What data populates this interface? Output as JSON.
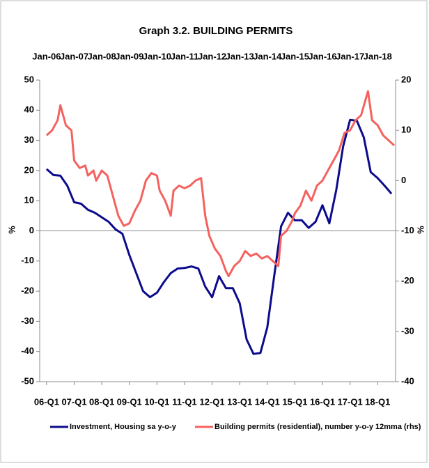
{
  "chart_data": {
    "type": "line",
    "title": "Graph 3.2. BUILDING PERMITS",
    "y_label": "%",
    "y2_label": "%",
    "xlim": [
      2005.75,
      2018.65
    ],
    "xticks": [
      {
        "value": 2006,
        "label": "06-Q1"
      },
      {
        "value": 2007,
        "label": "07-Q1"
      },
      {
        "value": 2008,
        "label": "08-Q1"
      },
      {
        "value": 2009,
        "label": "09-Q1"
      },
      {
        "value": 2010,
        "label": "10-Q1"
      },
      {
        "value": 2011,
        "label": "11-Q1"
      },
      {
        "value": 2012,
        "label": "12-Q1"
      },
      {
        "value": 2013,
        "label": "13-Q1"
      },
      {
        "value": 2014,
        "label": "14-Q1"
      },
      {
        "value": 2015,
        "label": "15-Q1"
      },
      {
        "value": 2016,
        "label": "16-Q1"
      },
      {
        "value": 2017,
        "label": "17-Q1"
      },
      {
        "value": 2018,
        "label": "18-Q1"
      }
    ],
    "x2ticks": [
      {
        "value": 2006,
        "label": "Jan-06"
      },
      {
        "value": 2007,
        "label": "Jan-07"
      },
      {
        "value": 2008,
        "label": "Jan-08"
      },
      {
        "value": 2009,
        "label": "Jan-09"
      },
      {
        "value": 2010,
        "label": "Jan-10"
      },
      {
        "value": 2011,
        "label": "Jan-11"
      },
      {
        "value": 2012,
        "label": "Jan-12"
      },
      {
        "value": 2013,
        "label": "Jan-13"
      },
      {
        "value": 2014,
        "label": "Jan-14"
      },
      {
        "value": 2015,
        "label": "Jan-15"
      },
      {
        "value": 2016,
        "label": "Jan-16"
      },
      {
        "value": 2017,
        "label": "Jan-17"
      },
      {
        "value": 2018,
        "label": "Jan-18"
      }
    ],
    "ylim": [
      -50,
      50
    ],
    "yticks": [
      50,
      40,
      30,
      20,
      10,
      0,
      -10,
      -20,
      -30,
      -40,
      -50
    ],
    "y2lim": [
      -40,
      20
    ],
    "y2ticks": [
      20,
      10,
      0,
      -10,
      -20,
      -30,
      -40
    ],
    "series": [
      {
        "name": "Investment, Housing sa y-o-y",
        "color": "#0b0b8c",
        "axis": "y",
        "x": [
          2006,
          2006.25,
          2006.5,
          2006.75,
          2007,
          2007.25,
          2007.5,
          2007.75,
          2008,
          2008.25,
          2008.5,
          2008.75,
          2009,
          2009.25,
          2009.5,
          2009.75,
          2010,
          2010.25,
          2010.5,
          2010.75,
          2011,
          2011.25,
          2011.5,
          2011.75,
          2012,
          2012.25,
          2012.5,
          2012.75,
          2013,
          2013.25,
          2013.5,
          2013.75,
          2014,
          2014.25,
          2014.5,
          2014.75,
          2015,
          2015.25,
          2015.5,
          2015.75,
          2016,
          2016.25,
          2016.5,
          2016.75,
          2017,
          2017.25,
          2017.5,
          2017.75,
          2018,
          2018.25,
          2018.5
        ],
        "values": [
          20.5,
          18.5,
          18.3,
          15,
          9.5,
          9,
          7,
          6,
          4.5,
          3,
          0.5,
          -1,
          -8,
          -14,
          -20,
          -22,
          -20.5,
          -17,
          -14,
          -12.5,
          -12.3,
          -11.8,
          -12.5,
          -18.5,
          -22,
          -15,
          -19,
          -19,
          -24,
          -36,
          -40.8,
          -40.5,
          -32,
          -15,
          1.5,
          6,
          3.5,
          3.5,
          1,
          3,
          8.5,
          2.5,
          13.5,
          28,
          36.8,
          36.5,
          31,
          19.5,
          17.5,
          15,
          12.3
        ]
      },
      {
        "name": "Building permits (residential), number y-o-y 12mma (rhs)",
        "color": "#f4625f",
        "axis": "y2",
        "x": [
          2006,
          2006.2,
          2006.4,
          2006.5,
          2006.7,
          2006.9,
          2007,
          2007.2,
          2007.4,
          2007.5,
          2007.7,
          2007.8,
          2008,
          2008.2,
          2008.4,
          2008.6,
          2008.8,
          2009,
          2009.2,
          2009.4,
          2009.6,
          2009.8,
          2010,
          2010.1,
          2010.3,
          2010.5,
          2010.6,
          2010.8,
          2011,
          2011.2,
          2011.4,
          2011.6,
          2011.75,
          2011.9,
          2012.1,
          2012.3,
          2012.5,
          2012.6,
          2012.8,
          2013,
          2013.2,
          2013.4,
          2013.6,
          2013.8,
          2014,
          2014.2,
          2014.4,
          2014.5,
          2014.7,
          2014.9,
          2015,
          2015.2,
          2015.4,
          2015.6,
          2015.8,
          2016,
          2016.2,
          2016.4,
          2016.6,
          2016.8,
          2017,
          2017.2,
          2017.4,
          2017.65,
          2017.8,
          2018,
          2018.2,
          2018.4,
          2018.6
        ],
        "values": [
          9,
          10,
          12,
          15,
          11,
          10,
          4,
          2.5,
          3,
          1,
          2,
          0,
          2,
          1,
          -3,
          -7,
          -9,
          -8.5,
          -6,
          -4,
          0,
          1.5,
          1,
          -2,
          -4,
          -7,
          -2,
          -1,
          -1.5,
          -1,
          0,
          0.5,
          -7,
          -11,
          -13.5,
          -15,
          -18,
          -19,
          -17,
          -16,
          -14,
          -15,
          -14.5,
          -15.5,
          -15,
          -16,
          -17,
          -11,
          -10,
          -8,
          -6.5,
          -5,
          -2,
          -4,
          -1,
          0,
          2,
          4,
          6,
          9.5,
          10,
          12,
          13,
          17.8,
          12,
          11,
          9,
          8,
          7
        ]
      }
    ]
  }
}
